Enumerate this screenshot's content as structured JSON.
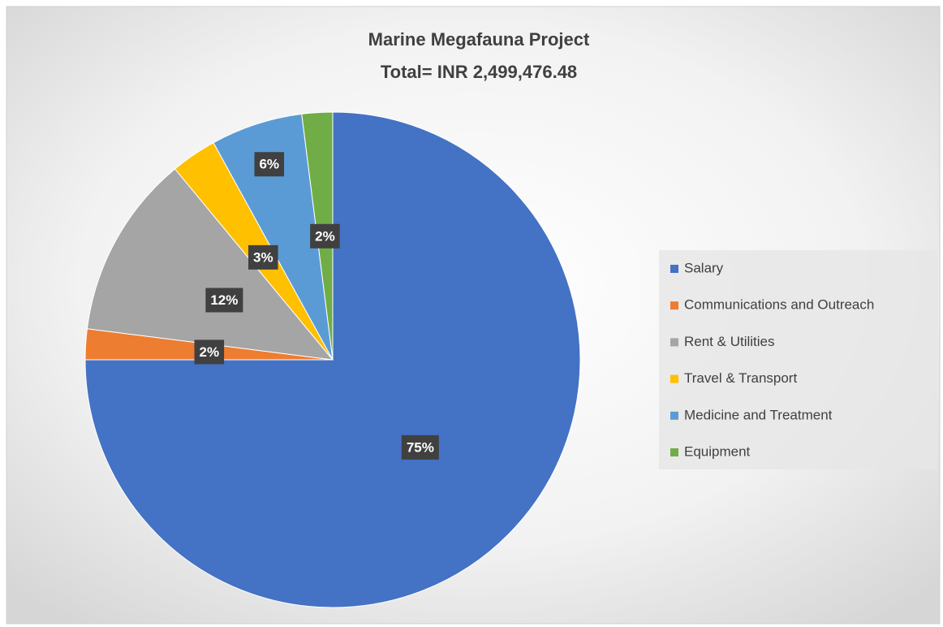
{
  "chart_data": {
    "type": "pie",
    "title": "Marine Megafauna Project",
    "subtitle": "Total= INR 2,499,476.48",
    "categories": [
      "Salary",
      "Communications and Outreach",
      "Rent & Utilities",
      "Travel & Transport",
      "Medicine and Treatment",
      "Equipment"
    ],
    "values": [
      75,
      2,
      12,
      3,
      6,
      2
    ],
    "value_labels": [
      "75%",
      "2%",
      "12%",
      "3%",
      "6%",
      "2%"
    ],
    "colors": [
      "#4472c4",
      "#ed7d31",
      "#a5a5a5",
      "#ffc000",
      "#5b9bd5",
      "#70ad47"
    ],
    "legend": "right"
  }
}
